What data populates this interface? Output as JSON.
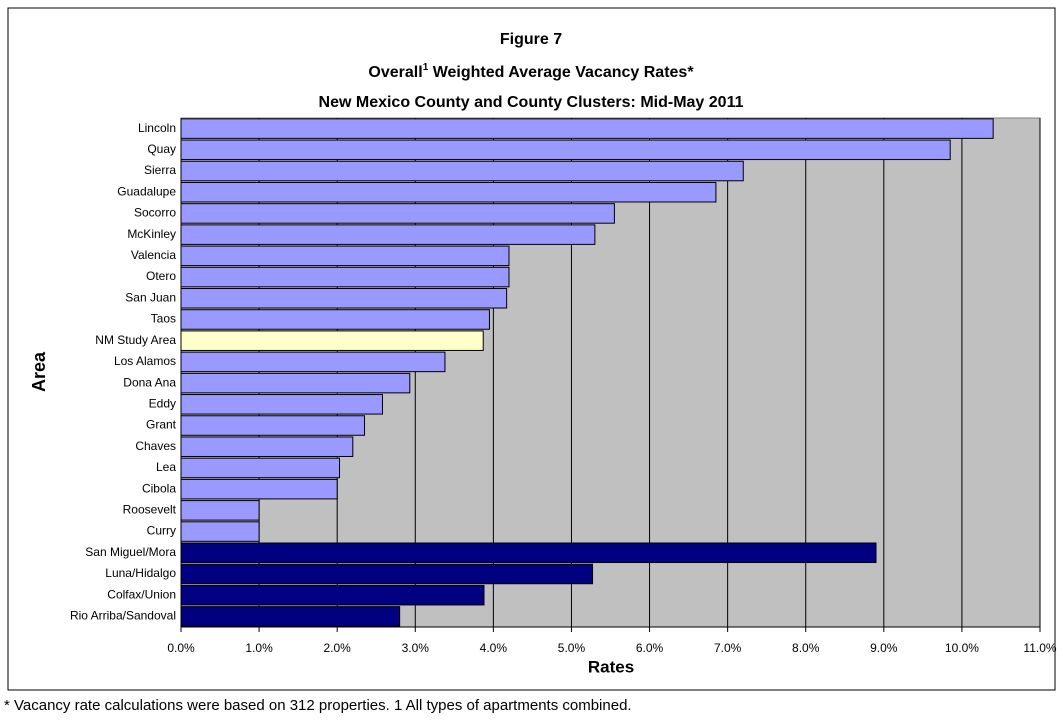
{
  "chart_data": {
    "type": "hbar",
    "title": "Figure 7",
    "subtitle_parts": [
      "Overall",
      "1",
      " Weighted Average Vacancy Rates*"
    ],
    "subtitle2": "New Mexico County and County Clusters: Mid-May 2011",
    "y_label": "Area",
    "x_label": "Rates",
    "footnote": "* Vacancy rate calculations were based on 312 properties.  1  All types of apartments combined.",
    "categories": [
      "Lincoln",
      "Quay",
      "Sierra",
      "Guadalupe",
      "Socorro",
      "McKinley",
      "Valencia",
      "Otero",
      "San Juan",
      "Taos",
      "NM Study Area",
      "Los Alamos",
      "Dona Ana",
      "Eddy",
      "Grant",
      "Chaves",
      "Lea",
      "Cibola",
      "Roosevelt",
      "Curry",
      "San Miguel/Mora",
      "Luna/Hidalgo",
      "Colfax/Union",
      "Rio Arriba/Sandoval"
    ],
    "values": [
      10.4,
      9.85,
      7.2,
      6.85,
      5.55,
      5.3,
      4.2,
      4.2,
      4.17,
      3.95,
      3.87,
      3.38,
      2.93,
      2.58,
      2.35,
      2.2,
      2.03,
      2.0,
      1.0,
      1.0,
      8.9,
      5.27,
      3.88,
      2.8
    ],
    "colors": [
      "#9999ff",
      "#9999ff",
      "#9999ff",
      "#9999ff",
      "#9999ff",
      "#9999ff",
      "#9999ff",
      "#9999ff",
      "#9999ff",
      "#9999ff",
      "#ffffcc",
      "#9999ff",
      "#9999ff",
      "#9999ff",
      "#9999ff",
      "#9999ff",
      "#9999ff",
      "#9999ff",
      "#9999ff",
      "#9999ff",
      "#000080",
      "#000080",
      "#000080",
      "#000080"
    ],
    "xlim": [
      0,
      11
    ],
    "xticks": [
      {
        "value": 0,
        "label": "0.0%"
      },
      {
        "value": 1,
        "label": "1.0%"
      },
      {
        "value": 2,
        "label": "2.0%"
      },
      {
        "value": 3,
        "label": "3.0%"
      },
      {
        "value": 4,
        "label": "4.0%"
      },
      {
        "value": 5,
        "label": "5.0%"
      },
      {
        "value": 6,
        "label": "6.0%"
      },
      {
        "value": 7,
        "label": "7.0%"
      },
      {
        "value": 8,
        "label": "8.0%"
      },
      {
        "value": 9,
        "label": "9.0%"
      },
      {
        "value": 10,
        "label": "10.0%"
      },
      {
        "value": 11,
        "label": "11.0%"
      }
    ],
    "grid": true,
    "plot_background": "#c0c0c0"
  }
}
